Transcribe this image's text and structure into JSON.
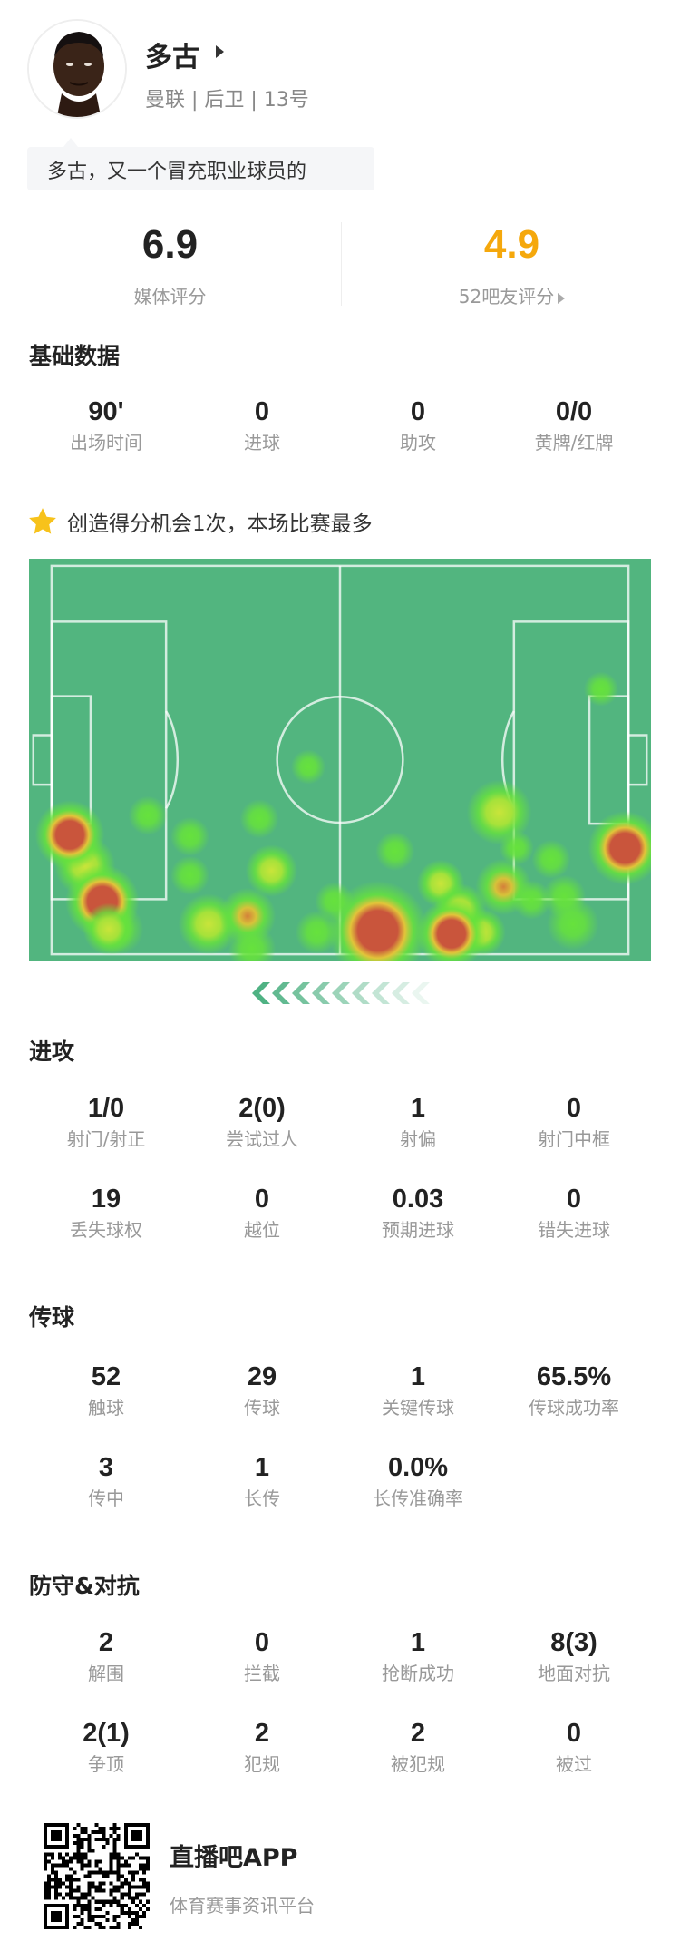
{
  "player": {
    "name": "多古",
    "meta": "曼联 | 后卫 | 13号",
    "comment": "多古，又一个冒充职业球员的"
  },
  "ratings": {
    "media": {
      "value": "6.9",
      "label": "媒体评分"
    },
    "fans": {
      "value": "4.9",
      "label": "52吧友评分",
      "color": "#f5a80c"
    }
  },
  "basic": {
    "title": "基础数据",
    "stats": [
      {
        "value": "90'",
        "label": "出场时间"
      },
      {
        "value": "0",
        "label": "进球"
      },
      {
        "value": "0",
        "label": "助攻"
      },
      {
        "value": "0/0",
        "label": "黄牌/红牌"
      }
    ]
  },
  "highlight": {
    "icon": "star-icon",
    "text": "创造得分机会1次，本场比赛最多",
    "color": "#f7c21b"
  },
  "heatmap": {
    "pitch_color": "#52b57f",
    "attack_direction": "left"
  },
  "attack": {
    "title": "进攻",
    "stats": [
      {
        "value": "1/0",
        "label": "射门/射正"
      },
      {
        "value": "2(0)",
        "label": "尝试过人"
      },
      {
        "value": "1",
        "label": "射偏"
      },
      {
        "value": "0",
        "label": "射门中框"
      },
      {
        "value": "19",
        "label": "丢失球权"
      },
      {
        "value": "0",
        "label": "越位"
      },
      {
        "value": "0.03",
        "label": "预期进球"
      },
      {
        "value": "0",
        "label": "错失进球"
      }
    ]
  },
  "passing": {
    "title": "传球",
    "stats": [
      {
        "value": "52",
        "label": "触球"
      },
      {
        "value": "29",
        "label": "传球"
      },
      {
        "value": "1",
        "label": "关键传球"
      },
      {
        "value": "65.5%",
        "label": "传球成功率"
      },
      {
        "value": "3",
        "label": "传中"
      },
      {
        "value": "1",
        "label": "长传"
      },
      {
        "value": "0.0%",
        "label": "长传准确率"
      }
    ]
  },
  "defense": {
    "title": "防守&对抗",
    "stats": [
      {
        "value": "2",
        "label": "解围"
      },
      {
        "value": "0",
        "label": "拦截"
      },
      {
        "value": "1",
        "label": "抢断成功"
      },
      {
        "value": "8(3)",
        "label": "地面对抗"
      },
      {
        "value": "2(1)",
        "label": "争顶"
      },
      {
        "value": "2",
        "label": "犯规"
      },
      {
        "value": "2",
        "label": "被犯规"
      },
      {
        "value": "0",
        "label": "被过"
      }
    ]
  },
  "footer": {
    "app_name": "直播吧APP",
    "slogan": "体育赛事资讯平台"
  }
}
